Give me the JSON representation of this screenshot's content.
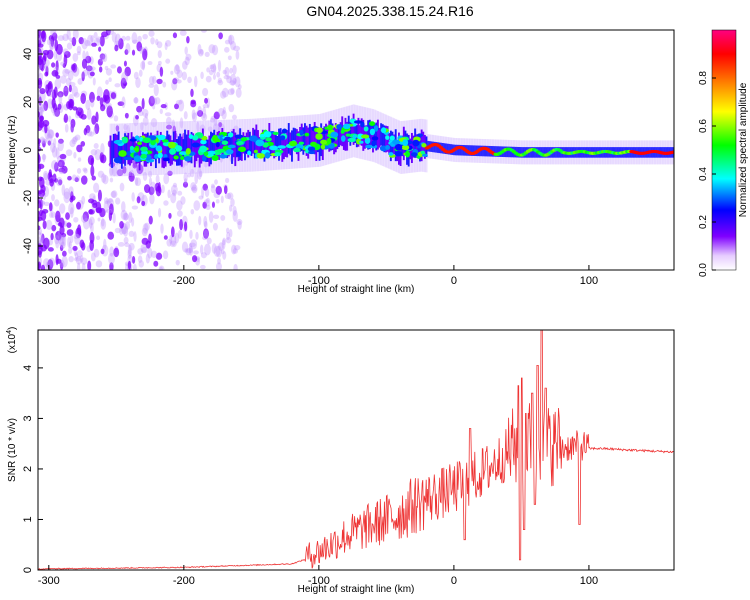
{
  "title": "GN04.2025.338.15.24.R16",
  "chart_data": [
    {
      "type": "heatmap",
      "xlabel": "Height of straight line (km)",
      "ylabel": "Frequency (Hz)",
      "xlim": [
        -308,
        163
      ],
      "ylim": [
        -50,
        50
      ],
      "xticks": [
        -300,
        -200,
        -100,
        0,
        100
      ],
      "yticks": [
        -40,
        -20,
        0,
        20,
        40
      ],
      "ridge": [
        {
          "x": -250,
          "y": 0
        },
        {
          "x": -200,
          "y": 1
        },
        {
          "x": -150,
          "y": 2
        },
        {
          "x": -100,
          "y": 4
        },
        {
          "x": -75,
          "y": 8
        },
        {
          "x": -60,
          "y": 6
        },
        {
          "x": -40,
          "y": 1
        },
        {
          "x": -25,
          "y": 2
        },
        {
          "x": 0,
          "y": 0
        },
        {
          "x": 50,
          "y": -1
        },
        {
          "x": 100,
          "y": -1
        },
        {
          "x": 163,
          "y": -1
        }
      ],
      "colorbar": {
        "label": "Normalized spectral amplitude",
        "range": [
          0,
          1
        ],
        "ticks": [
          "0.0",
          "0.2",
          "0.4",
          "0.6",
          "0.8"
        ],
        "colors": [
          "#ffffff",
          "#7f00ff",
          "#0000ff",
          "#00ffff",
          "#00ff00",
          "#ffff00",
          "#ff8000",
          "#ff0000",
          "#ff0080"
        ]
      }
    },
    {
      "type": "line",
      "xlabel": "Height of straight line (km)",
      "ylabel": "SNR (10 * v/v)",
      "yscale_label": "(x10",
      "yscale_exp": "4",
      "yscale_close": ")",
      "xlim": [
        -308,
        163
      ],
      "ylim": [
        0,
        4.75
      ],
      "xticks": [
        -300,
        -200,
        -100,
        0,
        100
      ],
      "yticks": [
        0,
        1,
        2,
        3,
        4
      ],
      "color": "#ee3333",
      "envelope": [
        {
          "x": -308,
          "y": 0.02
        },
        {
          "x": -200,
          "y": 0.05
        },
        {
          "x": -120,
          "y": 0.12
        },
        {
          "x": -100,
          "y": 0.3
        },
        {
          "x": -80,
          "y": 0.6
        },
        {
          "x": -60,
          "y": 0.8
        },
        {
          "x": -40,
          "y": 1.0
        },
        {
          "x": -20,
          "y": 1.3
        },
        {
          "x": 0,
          "y": 1.5
        },
        {
          "x": 20,
          "y": 1.8
        },
        {
          "x": 40,
          "y": 2.2
        },
        {
          "x": 55,
          "y": 2.4
        },
        {
          "x": 70,
          "y": 2.3
        },
        {
          "x": 90,
          "y": 2.4
        },
        {
          "x": 110,
          "y": 2.4
        },
        {
          "x": 130,
          "y": 2.37
        },
        {
          "x": 163,
          "y": 2.33
        }
      ],
      "peaks": [
        {
          "x": 48,
          "y": 3.65
        },
        {
          "x": 50,
          "y": 3.8
        },
        {
          "x": 53,
          "y": 3.1
        },
        {
          "x": 58,
          "y": 3.5
        },
        {
          "x": 62,
          "y": 4.05
        },
        {
          "x": 65,
          "y": 4.75
        },
        {
          "x": 68,
          "y": 3.6
        },
        {
          "x": 93,
          "y": 3.5
        },
        {
          "x": 12,
          "y": 2.8
        }
      ],
      "dips": [
        {
          "x": 49,
          "y": 0.2
        },
        {
          "x": 52,
          "y": 0.8
        },
        {
          "x": 60,
          "y": 1.3
        },
        {
          "x": 93,
          "y": 0.9
        },
        {
          "x": 8,
          "y": 0.6
        }
      ]
    }
  ]
}
